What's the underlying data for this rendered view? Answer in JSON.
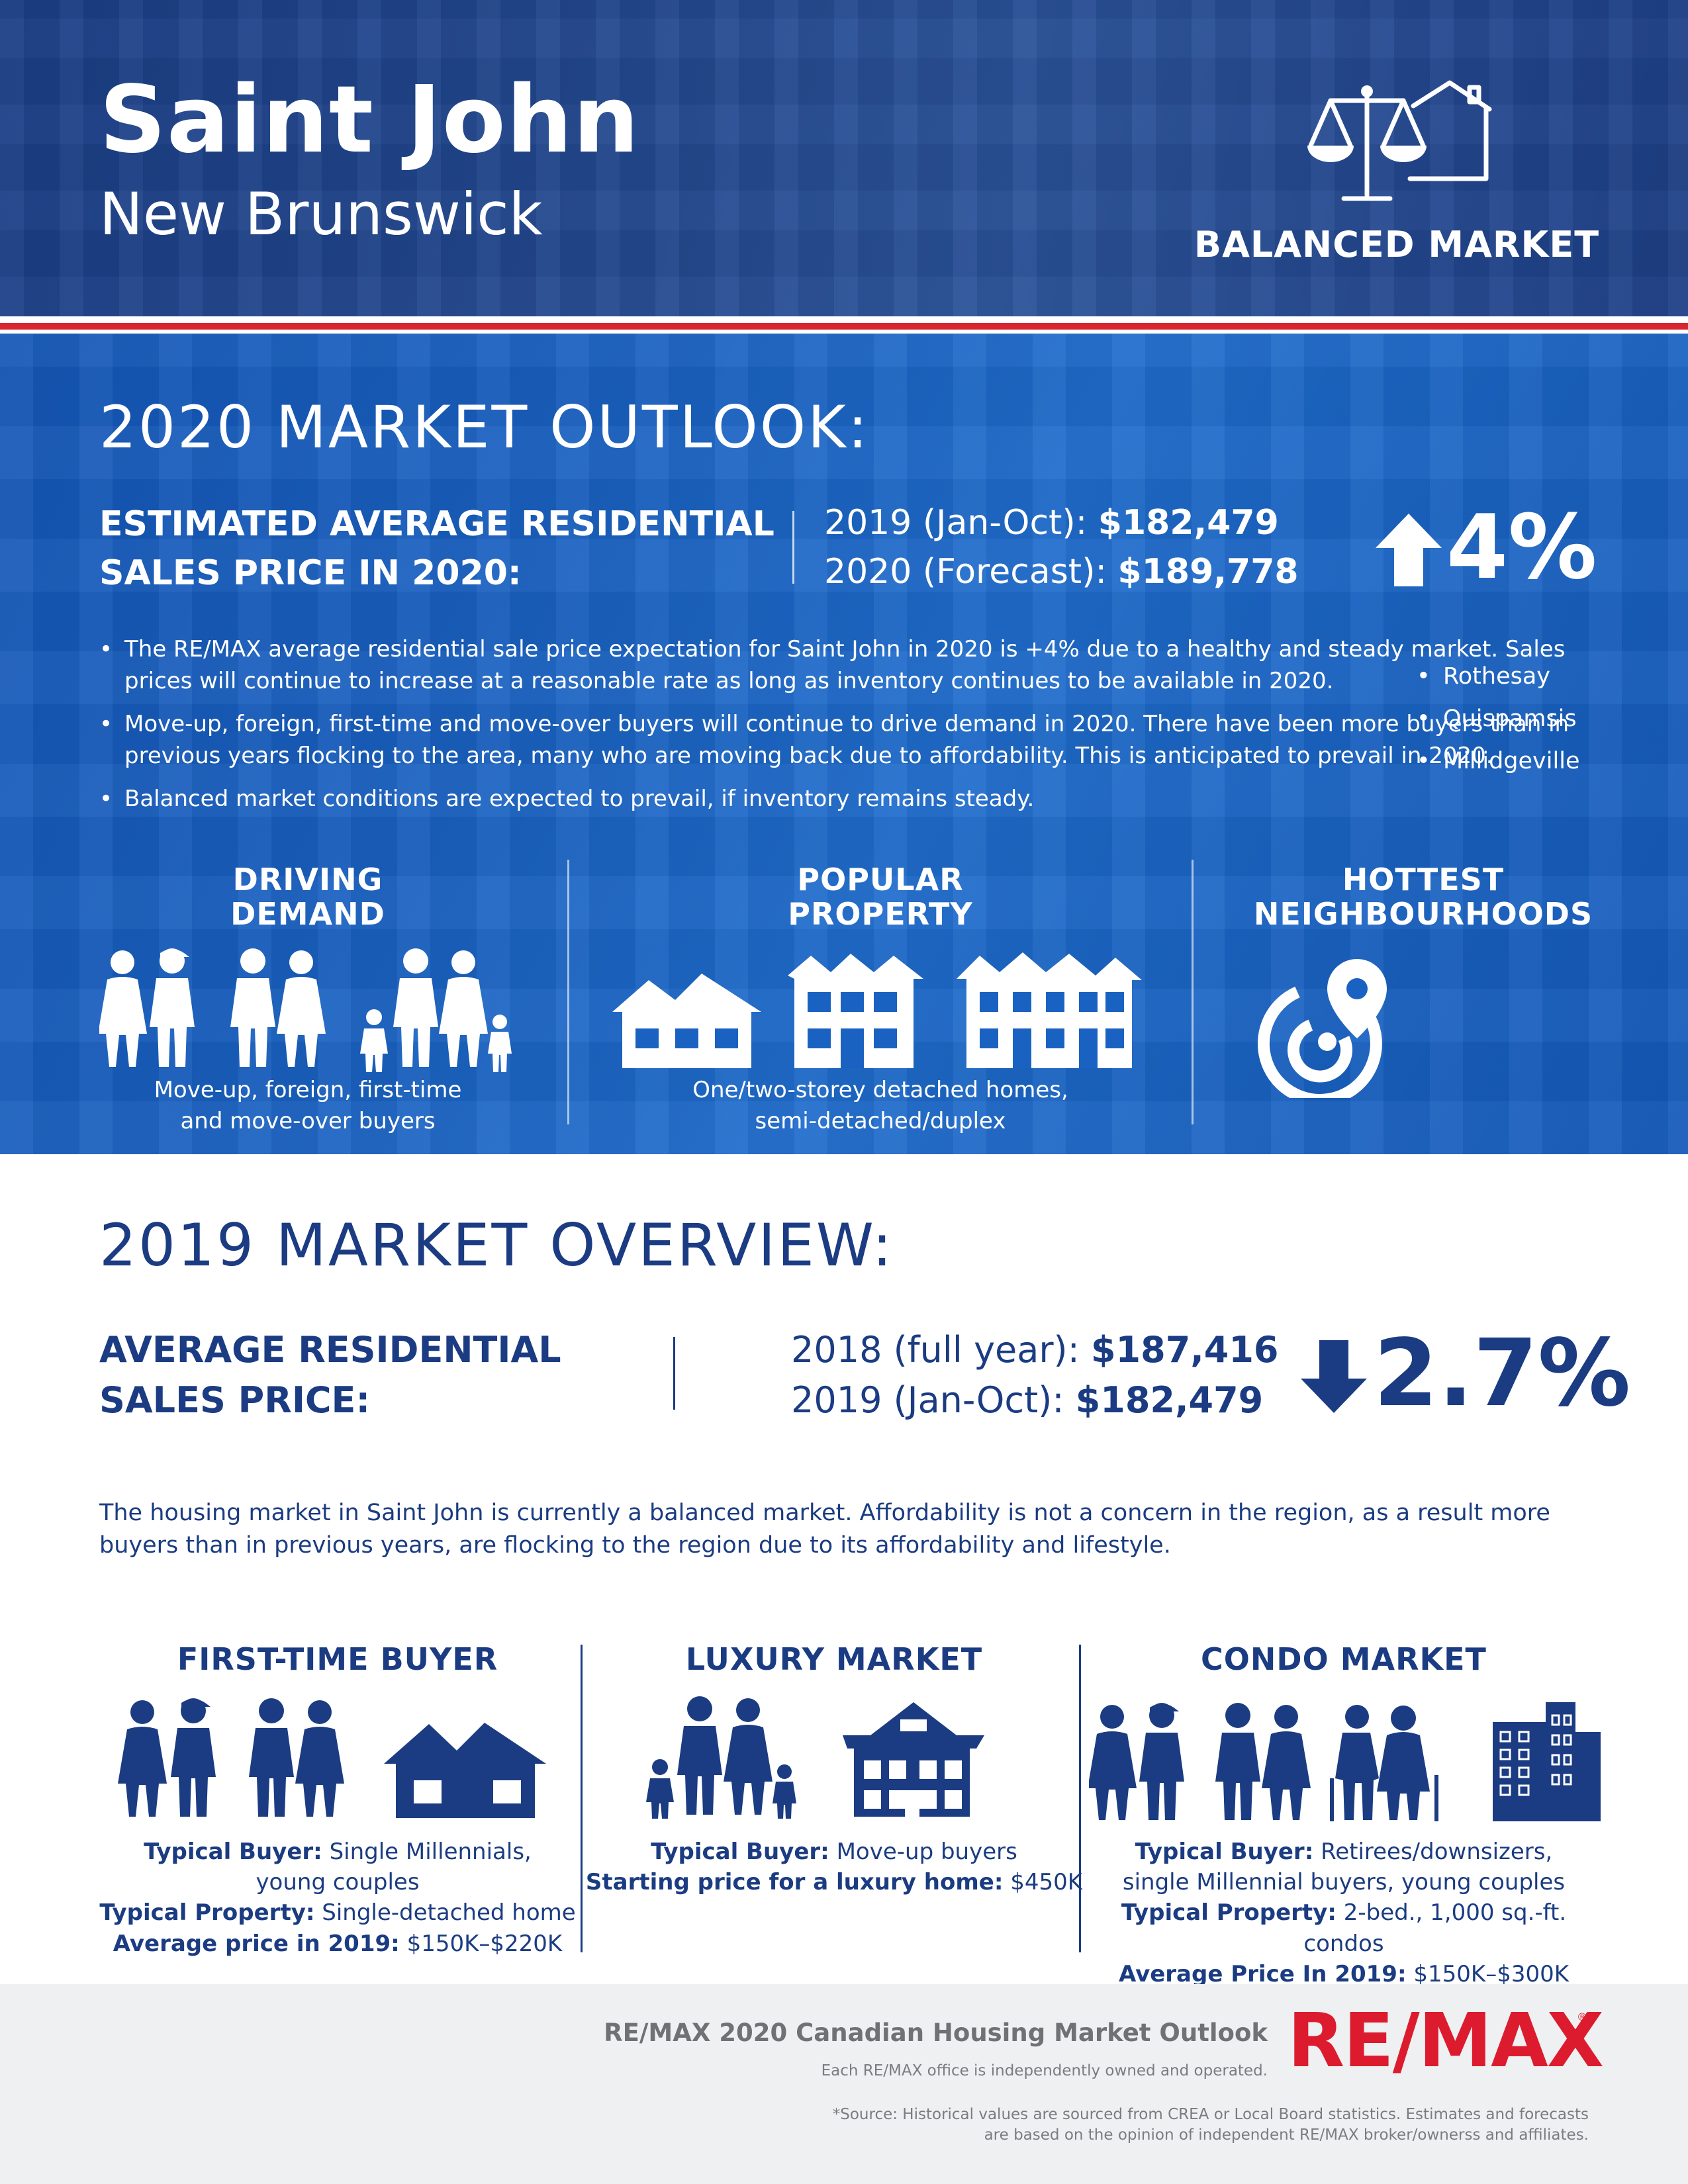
{
  "header": {
    "city": "Saint John",
    "province": "New Brunswick",
    "market_type": "BALANCED MARKET",
    "icon": "balance-scale-house-icon"
  },
  "outlook": {
    "title": "2020 MARKET OUTLOOK:",
    "estimated_label": "ESTIMATED AVERAGE RESIDENTIAL SALES PRICE IN 2020:",
    "row1_label": "2019 (Jan-Oct): ",
    "row1_value": "$182,479",
    "row2_label": "2020 (Forecast): ",
    "row2_value": "$189,778",
    "change": "4%",
    "change_direction": "up",
    "bullets": [
      "The RE/MAX average residential sale price expectation for Saint John in 2020 is +4% due to a healthy and steady market. Sales prices will continue to increase at a reasonable rate as long as inventory continues to be available in 2020.",
      "Move-up, foreign, first-time and move-over buyers will continue to drive demand in 2020. There have been more buyers than in previous years flocking to the area, many who are moving back due to affordability. This is anticipated to prevail in 2020.",
      "Balanced market conditions are expected to prevail, if inventory remains steady."
    ],
    "driving_demand": {
      "title_line1": "DRIVING",
      "title_line2": "DEMAND",
      "caption_line1": "Move-up, foreign, first-time",
      "caption_line2": "and move-over buyers"
    },
    "popular_property": {
      "title_line1": "POPULAR",
      "title_line2": "PROPERTY",
      "caption_line1": "One/two-storey detached homes,",
      "caption_line2": "semi-detached/duplex"
    },
    "hottest": {
      "title_line1": "HOTTEST",
      "title_line2": "NEIGHBOURHOODS",
      "items": [
        "Rothesay",
        "Quispamsis",
        "Millidgeville"
      ]
    }
  },
  "overview": {
    "title": "2019 MARKET OVERVIEW:",
    "avg_label_line1": "AVERAGE RESIDENTIAL",
    "avg_label_line2": "SALES PRICE:",
    "row1_label": "2018 (full year): ",
    "row1_value": "$187,416",
    "row2_label": "2019 (Jan-Oct): ",
    "row2_value": "$182,479",
    "change": "2.7%",
    "change_direction": "down",
    "paragraph": "The housing market in Saint John is currently a balanced market. Affordability is not a concern in the region, as a result more buyers than in previous years, are flocking to the region due to its affordability and lifestyle.",
    "first_time": {
      "title": "FIRST-TIME BUYER",
      "l1_label": "Typical Buyer:",
      "l1_value": " Single Millennials,",
      "l2_value": "young couples",
      "l3_label": "Typical Property:",
      "l3_value": " Single-detached home",
      "l4_label": "Average price in 2019:",
      "l4_value": " $150K–$220K"
    },
    "luxury": {
      "title": "LUXURY MARKET",
      "l1_label": "Typical Buyer:",
      "l1_value": " Move-up buyers",
      "l2_label": "Starting price for a luxury home:",
      "l2_value": " $450K"
    },
    "condo": {
      "title": "CONDO MARKET",
      "l1_label": "Typical Buyer:",
      "l1_value": " Retirees/downsizers,",
      "l2_value": "single Millennial buyers, young couples",
      "l3_label": "Typical Property:",
      "l3_value": " 2-bed., 1,000 sq.-ft. condos",
      "l4_label": "Average Price In 2019:",
      "l4_value": " $150K–$300K"
    }
  },
  "footer": {
    "title": "RE/MAX 2020 Canadian Housing Market Outlook",
    "owned": "Each RE/MAX office is independently owned and operated.",
    "source_line1": "*Source: Historical values are sourced from CREA or Local Board statistics. Estimates and forecasts",
    "source_line2": "are based on the opinion of independent RE/MAX broker/ownerss and affiliates.",
    "logo": "RE/MAX",
    "logo_reg": "®"
  },
  "colors": {
    "header_blue": "#1f468c",
    "outlook_blue": "#1a62c2",
    "navy_text": "#1b3c82",
    "red_stripe": "#d7262f",
    "logo_red": "#dc1c2e",
    "footer_bg": "#eff0f2"
  }
}
